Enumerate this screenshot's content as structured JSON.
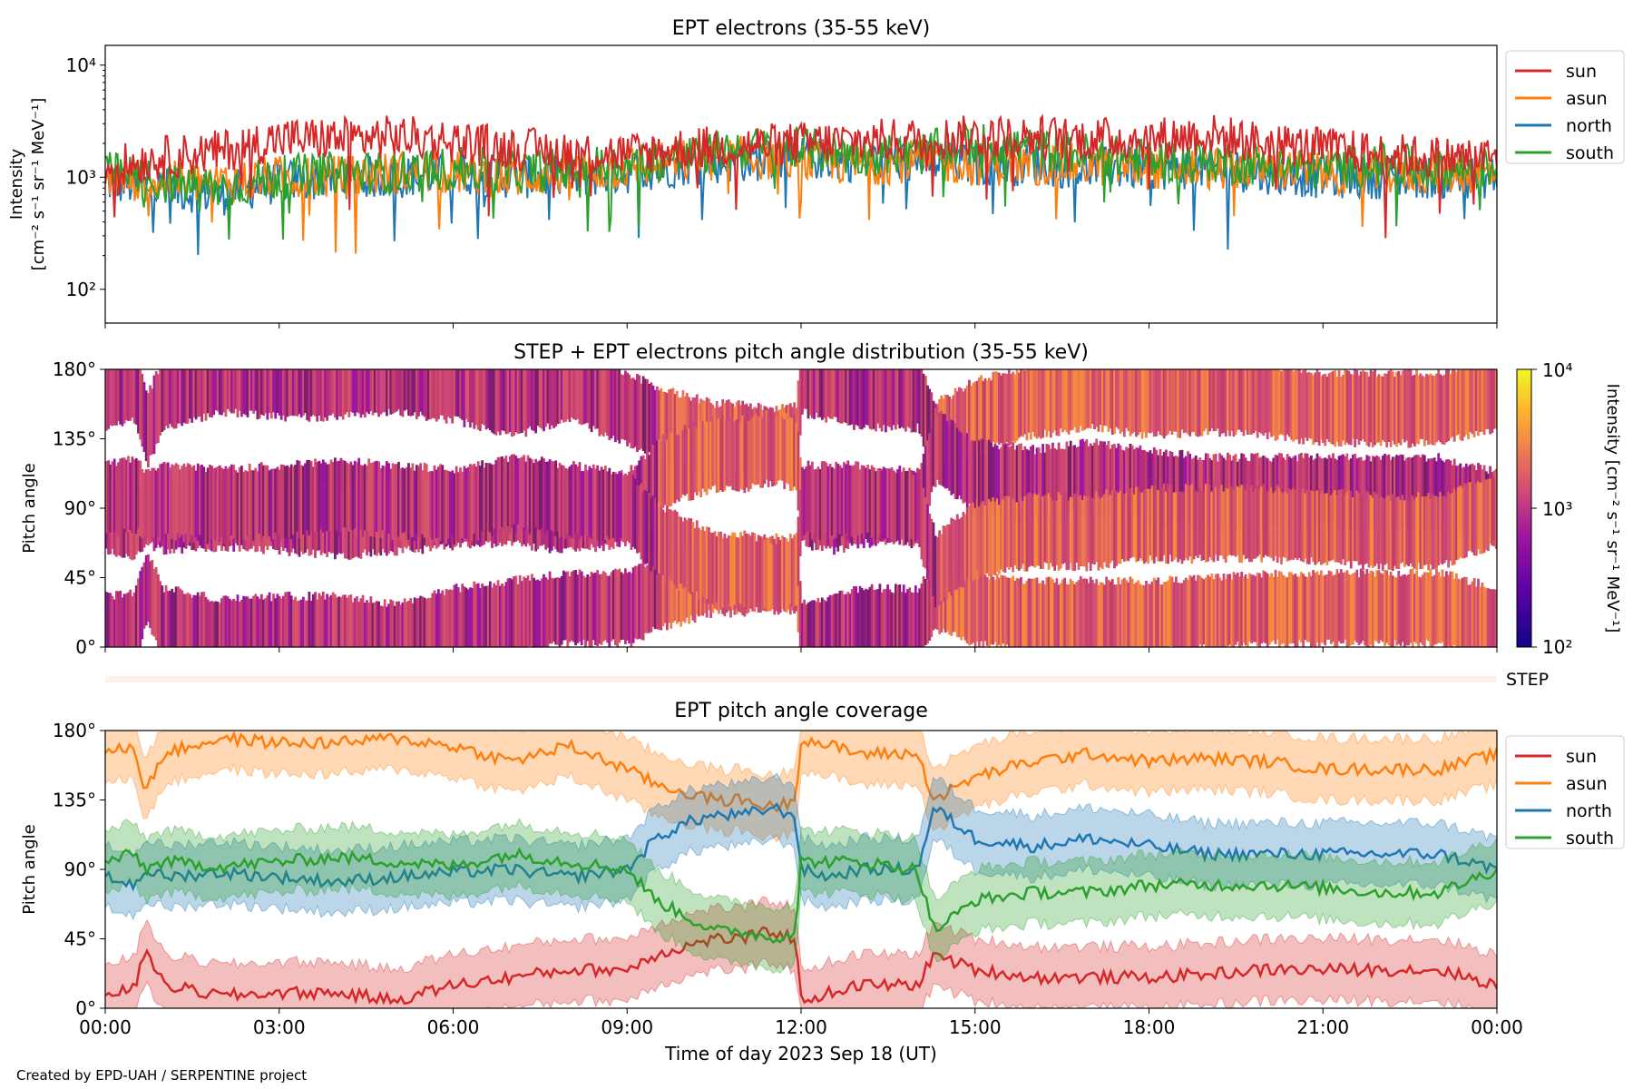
{
  "colors": {
    "sun": "#d62728",
    "asun": "#ff7f0e",
    "north": "#1f77b4",
    "south": "#2ca02c",
    "background": "#ffffff"
  },
  "credit": "Created by EPD-UAH / SERPENTINE project",
  "xaxis": {
    "label": "Time of day 2023 Sep 18 (UT)",
    "tick_labels": [
      "00:00",
      "03:00",
      "06:00",
      "09:00",
      "12:00",
      "15:00",
      "18:00",
      "21:00",
      "00:00"
    ]
  },
  "step_label": "STEP",
  "colorbar": {
    "tick_labels": [
      "10⁴",
      "10³",
      "10²"
    ],
    "label": "Intensity [cm⁻² s⁻¹ sr⁻¹ MeV⁻¹]",
    "colormap": "plasma",
    "scale": "log",
    "range": [
      100,
      10000
    ]
  },
  "chart_data": [
    {
      "type": "line",
      "title": "EPT electrons (35-55 keV)",
      "ylabel_line1": "Intensity",
      "ylabel_line2": "[cm⁻² s⁻¹ sr⁻¹ MeV⁻¹]",
      "xlim": [
        0,
        24
      ],
      "ylim": [
        50,
        15000
      ],
      "yscale": "log",
      "ytick_labels": [
        "10⁴",
        "10³",
        "10²"
      ],
      "legend": {
        "position": "outside-right-top",
        "entries": [
          "sun",
          "asun",
          "north",
          "south"
        ]
      },
      "series": [
        {
          "name": "sun",
          "x": [
            0,
            1,
            2,
            3,
            4,
            5,
            6,
            7,
            8,
            9,
            10,
            11,
            12,
            13,
            14,
            15,
            16,
            17,
            18,
            19,
            20,
            21,
            22,
            23,
            24
          ],
          "y": [
            1200,
            1500,
            1700,
            2200,
            2200,
            2300,
            2100,
            1800,
            1700,
            1600,
            1800,
            1900,
            2000,
            2100,
            2200,
            2300,
            2300,
            2200,
            2200,
            2400,
            2000,
            1800,
            1600,
            1500,
            1500
          ]
        },
        {
          "name": "asun",
          "x": [
            0,
            1,
            2,
            3,
            4,
            5,
            6,
            7,
            8,
            9,
            10,
            11,
            12,
            13,
            14,
            15,
            16,
            17,
            18,
            19,
            20,
            21,
            22,
            23,
            24
          ],
          "y": [
            1000,
            900,
            900,
            1000,
            1000,
            1100,
            1100,
            1000,
            1100,
            1200,
            1400,
            1500,
            1400,
            1300,
            1400,
            1300,
            1300,
            1300,
            1200,
            1200,
            1200,
            1100,
            1100,
            1100,
            1100
          ]
        },
        {
          "name": "north",
          "x": [
            0,
            1,
            2,
            3,
            4,
            5,
            6,
            7,
            8,
            9,
            10,
            11,
            12,
            13,
            14,
            15,
            16,
            17,
            18,
            19,
            20,
            21,
            22,
            23,
            24
          ],
          "y": [
            900,
            800,
            700,
            900,
            1000,
            1000,
            1100,
            1000,
            1000,
            1100,
            1300,
            1400,
            1500,
            1400,
            1400,
            1300,
            1300,
            1200,
            1200,
            1200,
            1100,
            1000,
            1000,
            1000,
            1000
          ]
        },
        {
          "name": "south",
          "x": [
            0,
            1,
            2,
            3,
            4,
            5,
            6,
            7,
            8,
            9,
            10,
            11,
            12,
            13,
            14,
            15,
            16,
            17,
            18,
            19,
            20,
            21,
            22,
            23,
            24
          ],
          "y": [
            1100,
            900,
            800,
            1000,
            1100,
            1100,
            1200,
            1100,
            1200,
            1300,
            1500,
            1800,
            1800,
            1600,
            1600,
            2000,
            1800,
            1600,
            1400,
            1400,
            1300,
            1200,
            1300,
            1200,
            1200
          ]
        }
      ]
    },
    {
      "type": "heatmap",
      "title": "STEP + EPT electrons pitch angle distribution (35-55 keV)",
      "ylabel": "Pitch angle",
      "xlim": [
        0,
        24
      ],
      "ylim": [
        0,
        180
      ],
      "ytick_labels": [
        "180°",
        "135°",
        "90°",
        "45°",
        "0°"
      ],
      "note_values": "Intensity colour-coded; bands follow the pitch-angle coverage of each telescope (see panel 3)"
    },
    {
      "type": "area",
      "title": "EPT pitch angle coverage",
      "ylabel": "Pitch angle",
      "xlim": [
        0,
        24
      ],
      "ylim": [
        0,
        180
      ],
      "ytick_labels": [
        "180°",
        "135°",
        "90°",
        "45°",
        "0°"
      ],
      "legend": {
        "position": "outside-right-top",
        "entries": [
          "sun",
          "asun",
          "north",
          "south"
        ]
      },
      "band_halfwidth_deg": 20,
      "series": [
        {
          "name": "sun",
          "x": [
            0,
            0.5,
            0.7,
            1,
            2,
            3,
            4,
            5,
            6,
            7,
            8,
            9,
            9.5,
            10,
            10.5,
            11,
            11.5,
            11.9,
            12,
            12.5,
            13,
            14,
            14.3,
            15,
            16,
            17,
            18,
            19,
            20,
            21,
            22,
            23,
            24
          ],
          "y": [
            10,
            12,
            40,
            15,
            8,
            10,
            10,
            5,
            15,
            20,
            25,
            25,
            35,
            40,
            45,
            45,
            50,
            45,
            5,
            10,
            15,
            15,
            35,
            25,
            20,
            20,
            20,
            22,
            25,
            25,
            25,
            25,
            15
          ]
        },
        {
          "name": "asun",
          "x": [
            0,
            0.5,
            0.7,
            1,
            2,
            3,
            4,
            5,
            6,
            7,
            8,
            9,
            9.5,
            10,
            10.5,
            11,
            11.5,
            11.9,
            12,
            12.5,
            13,
            14,
            14.3,
            15,
            16,
            17,
            18,
            19,
            20,
            21,
            22,
            23,
            24
          ],
          "y": [
            165,
            170,
            140,
            165,
            175,
            172,
            172,
            175,
            170,
            160,
            170,
            155,
            145,
            140,
            135,
            135,
            130,
            135,
            175,
            170,
            165,
            165,
            135,
            150,
            160,
            165,
            160,
            162,
            160,
            155,
            155,
            155,
            165
          ]
        },
        {
          "name": "north",
          "x": [
            0,
            0.5,
            0.7,
            1,
            2,
            3,
            4,
            5,
            6,
            7,
            8,
            9,
            9.5,
            10,
            10.5,
            11,
            11.5,
            11.9,
            12,
            12.5,
            13,
            14,
            14.3,
            15,
            16,
            17,
            18,
            19,
            20,
            21,
            22,
            23,
            24
          ],
          "y": [
            85,
            80,
            90,
            85,
            88,
            85,
            82,
            85,
            88,
            90,
            85,
            90,
            110,
            120,
            125,
            125,
            130,
            125,
            90,
            85,
            90,
            90,
            130,
            110,
            105,
            110,
            105,
            100,
            100,
            100,
            100,
            100,
            90
          ]
        },
        {
          "name": "south",
          "x": [
            0,
            0.5,
            0.7,
            1,
            2,
            3,
            4,
            5,
            6,
            7,
            8,
            9,
            9.5,
            10,
            10.5,
            11,
            11.5,
            11.9,
            12,
            12.5,
            13,
            14,
            14.3,
            15,
            16,
            17,
            18,
            19,
            20,
            21,
            22,
            23,
            24
          ],
          "y": [
            95,
            100,
            90,
            95,
            92,
            95,
            98,
            95,
            92,
            100,
            95,
            90,
            70,
            60,
            50,
            50,
            45,
            50,
            95,
            95,
            95,
            90,
            50,
            70,
            75,
            75,
            80,
            80,
            80,
            78,
            75,
            75,
            90
          ]
        }
      ]
    }
  ]
}
